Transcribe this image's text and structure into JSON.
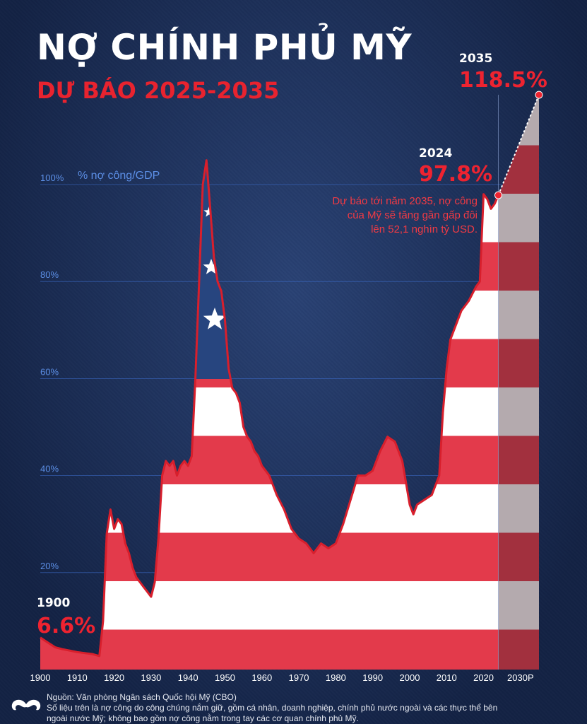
{
  "header": {
    "title": "NỢ CHÍNH PHỦ MỸ",
    "subtitle": "DỰ BÁO 2025-2035"
  },
  "colors": {
    "background": "#1f3461",
    "stripe_red": "#e33a4b",
    "stripe_white": "#ffffff",
    "union_blue": "#27457f",
    "outline": "#d81f2c",
    "accent_red": "#ee2330",
    "gridline": "#3e6fcf"
  },
  "chart_data": {
    "type": "area",
    "title": "",
    "ylabel": "% nợ công/GDP",
    "xlabel": "",
    "xlim": [
      1900,
      2035
    ],
    "ylim": [
      0,
      100
    ],
    "grid": true,
    "y_ticks": [
      "20%",
      "40%",
      "60%",
      "80%",
      "100%"
    ],
    "x_ticks": [
      "1900",
      "1910",
      "1920",
      "1930",
      "1940",
      "1950",
      "1960",
      "1970",
      "1980",
      "1990",
      "2000",
      "2010",
      "2020",
      "2030P"
    ],
    "series": [
      {
        "name": "",
        "x": [
          1900,
          1902,
          1904,
          1906,
          1908,
          1910,
          1912,
          1914,
          1916,
          1917,
          1918,
          1919,
          1920,
          1921,
          1922,
          1923,
          1924,
          1925,
          1926,
          1927,
          1928,
          1929,
          1930,
          1931,
          1932,
          1933,
          1934,
          1935,
          1936,
          1937,
          1938,
          1939,
          1940,
          1941,
          1942,
          1943,
          1944,
          1945,
          1946,
          1947,
          1948,
          1949,
          1950,
          1951,
          1952,
          1953,
          1954,
          1955,
          1956,
          1957,
          1958,
          1959,
          1960,
          1962,
          1964,
          1966,
          1968,
          1970,
          1972,
          1974,
          1976,
          1978,
          1980,
          1982,
          1984,
          1986,
          1988,
          1990,
          1992,
          1994,
          1996,
          1998,
          2000,
          2001,
          2002,
          2004,
          2006,
          2008,
          2009,
          2010,
          2011,
          2012,
          2014,
          2016,
          2018,
          2019,
          2020,
          2021,
          2022,
          2023,
          2024
        ],
        "values": [
          6.6,
          5.6,
          4.6,
          4.2,
          3.9,
          3.6,
          3.4,
          3.2,
          2.8,
          10,
          28,
          33,
          29,
          31,
          30,
          26,
          24,
          21,
          19,
          18,
          17,
          16,
          15,
          18,
          27,
          40,
          43,
          42,
          43,
          40,
          42,
          43,
          42,
          44,
          60,
          80,
          100,
          105,
          95,
          85,
          80,
          78,
          72,
          62,
          58,
          57,
          55,
          50,
          48,
          47,
          45,
          44,
          42,
          40,
          36,
          33,
          29,
          27,
          26,
          24,
          26,
          25,
          26,
          30,
          35,
          40,
          40,
          41,
          45,
          48,
          47,
          43,
          34,
          32,
          34,
          35,
          36,
          40,
          53,
          62,
          68,
          70,
          74,
          76,
          79,
          80,
          98,
          97,
          95,
          96,
          97.8
        ]
      },
      {
        "name": "",
        "x": [
          2024,
          2035
        ],
        "values": [
          97.8,
          118.5
        ],
        "projected": true
      }
    ],
    "annotations": [
      {
        "year": "1900",
        "value": "6.6%"
      },
      {
        "year": "2024",
        "value": "97.8%"
      },
      {
        "year": "2035",
        "value": "118.5%"
      }
    ],
    "note": "Dự báo tới năm 2035, nợ công của Mỹ sẽ tăng gần gấp đôi lên 52,1 nghìn tỷ USD."
  },
  "footer": {
    "source": "Nguồn: Văn phòng Ngân sách Quốc hội Mỹ (CBO)",
    "note_line1": "Số liệu trên là nợ công do công chúng nắm giữ, gồm cá nhân, doanh nghiệp, chính phủ nước ngoài và các thực thể bên",
    "note_line2": "ngoài nước Mỹ; không bao gồm nợ công nằm trong tay các cơ quan chính phủ Mỹ.",
    "logo_icon": "mustache-logo-icon"
  }
}
